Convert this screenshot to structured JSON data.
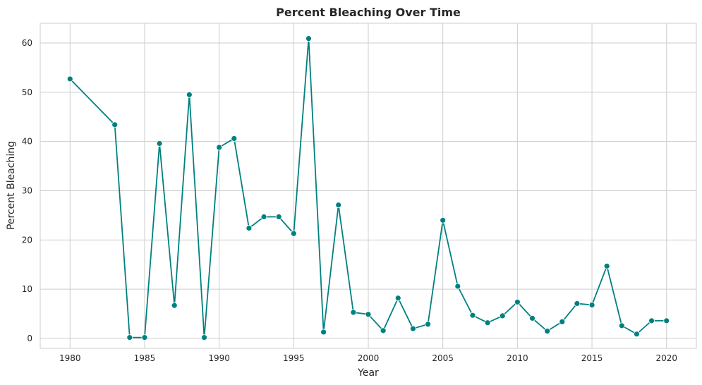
{
  "chart_data": {
    "type": "line",
    "title": "Percent Bleaching Over Time",
    "xlabel": "Year",
    "ylabel": "Percent Bleaching",
    "xlim": [
      1978,
      2022
    ],
    "ylim": [
      -2,
      64
    ],
    "xticks": [
      "1980",
      "1985",
      "1990",
      "1995",
      "2000",
      "2005",
      "2010",
      "2015",
      "2020"
    ],
    "yticks": [
      "0",
      "10",
      "20",
      "30",
      "40",
      "50",
      "60"
    ],
    "grid": true,
    "markers": true,
    "color": "#008080",
    "series": [
      {
        "x": [
          1980,
          1983,
          1984,
          1985,
          1986,
          1987,
          1988,
          1989,
          1990,
          1991,
          1992,
          1993,
          1994,
          1995,
          1996,
          1997,
          1998,
          1999,
          2000,
          2001,
          2002,
          2003,
          2004,
          2005,
          2006,
          2007,
          2008,
          2009,
          2010,
          2011,
          2012,
          2013,
          2014,
          2015,
          2016,
          2017,
          2018,
          2019,
          2020
        ],
        "y": [
          52.7,
          43.4,
          0.2,
          0.2,
          39.6,
          6.7,
          49.5,
          0.2,
          38.8,
          40.6,
          22.4,
          24.7,
          24.7,
          21.3,
          60.9,
          1.3,
          27.1,
          5.3,
          4.9,
          1.6,
          8.2,
          2.0,
          2.9,
          24.0,
          10.6,
          4.7,
          3.2,
          4.6,
          7.4,
          4.1,
          1.5,
          3.4,
          7.1,
          6.8,
          14.7,
          2.6,
          0.9,
          3.6,
          3.6
        ]
      }
    ]
  }
}
